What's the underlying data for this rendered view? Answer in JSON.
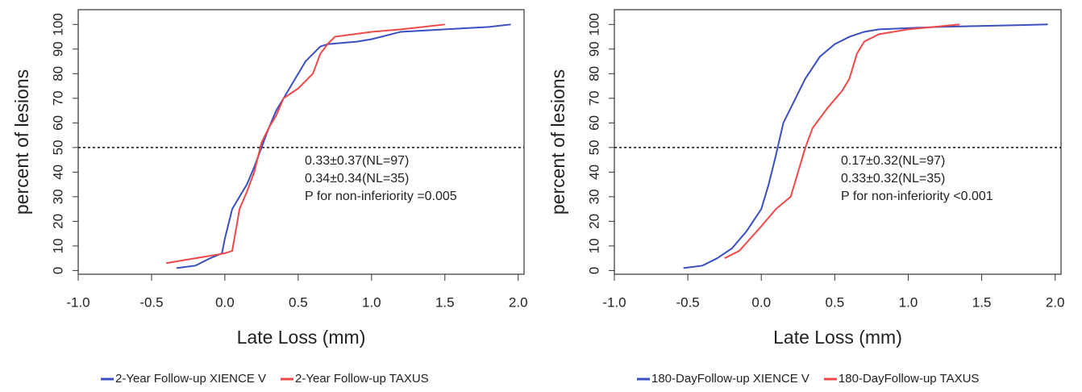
{
  "chart_data": [
    {
      "type": "line",
      "xlabel": "Late Loss (mm)",
      "ylabel": "percent of lesions",
      "xlim": [
        -1.0,
        2.04
      ],
      "ylim": [
        -1.5,
        106
      ],
      "xticks": [
        {
          "value": -1.0,
          "label": "-1.0"
        },
        {
          "value": -0.5,
          "label": "-0.5"
        },
        {
          "value": 0,
          "label": "0.0"
        },
        {
          "value": 0.5,
          "label": "0.5"
        },
        {
          "value": 1.0,
          "label": "1.0"
        },
        {
          "value": 1.5,
          "label": "1.5"
        },
        {
          "value": 2.0,
          "label": "2.0"
        }
      ],
      "yticks": [
        0,
        10,
        20,
        30,
        40,
        50,
        60,
        70,
        80,
        90,
        100
      ],
      "reference_line": 50,
      "annotations": [
        {
          "text": "0.33±0.37(NL=97)",
          "color": "#3a4fc0"
        },
        {
          "text": "0.34±0.34(NL=35)",
          "color": "#f04848"
        },
        {
          "text": "P for non-inferiority =0.005",
          "color": "#222222"
        }
      ],
      "series": [
        {
          "name": "2-Year Follow-up XIENCE V",
          "color": "#3a4fc0",
          "x": [
            -0.33,
            -0.2,
            -0.1,
            -0.02,
            0.0,
            0.05,
            0.1,
            0.15,
            0.2,
            0.25,
            0.3,
            0.35,
            0.4,
            0.45,
            0.5,
            0.55,
            0.6,
            0.65,
            0.7,
            0.9,
            1.0,
            1.2,
            1.5,
            1.8,
            1.95
          ],
          "values": [
            1,
            2,
            5,
            7,
            13,
            25,
            30,
            35,
            42,
            50,
            58,
            65,
            70,
            75,
            80,
            85,
            88,
            91,
            92,
            93,
            94,
            97,
            98,
            99,
            100
          ]
        },
        {
          "name": "2-Year Follow-up TAXUS",
          "color": "#f04848",
          "x": [
            -0.4,
            -0.2,
            0.0,
            0.05,
            0.1,
            0.15,
            0.2,
            0.25,
            0.3,
            0.35,
            0.4,
            0.45,
            0.5,
            0.6,
            0.65,
            0.7,
            0.75,
            1.0,
            1.2,
            1.5
          ],
          "values": [
            3,
            5,
            7,
            8,
            25,
            32,
            40,
            52,
            58,
            63,
            70,
            72,
            74,
            80,
            88,
            92,
            95,
            97,
            98,
            100
          ]
        }
      ]
    },
    {
      "type": "line",
      "xlabel": "Late Loss (mm)",
      "ylabel": "percent of lesions",
      "xlim": [
        -1.0,
        2.04
      ],
      "ylim": [
        -1.5,
        106
      ],
      "xticks": [
        {
          "value": -1.0,
          "label": "-1.0"
        },
        {
          "value": -0.5,
          "label": "-0.5"
        },
        {
          "value": 0,
          "label": "0.0"
        },
        {
          "value": 0.5,
          "label": "0.5"
        },
        {
          "value": 1.0,
          "label": "1.0"
        },
        {
          "value": 1.5,
          "label": "1.5"
        },
        {
          "value": 2.0,
          "label": "2.0"
        }
      ],
      "yticks": [
        0,
        10,
        20,
        30,
        40,
        50,
        60,
        70,
        80,
        90,
        100
      ],
      "reference_line": 50,
      "annotations": [
        {
          "text": "0.17±0.32(NL=97)",
          "color": "#3a4fc0"
        },
        {
          "text": "0.33±0.32(NL=35)",
          "color": "#f04848"
        },
        {
          "text": "P for non-inferiority <0.001",
          "color": "#222222"
        }
      ],
      "series": [
        {
          "name": "180-DayFollow-up XIENCE V",
          "color": "#3a4fc0",
          "x": [
            -0.53,
            -0.4,
            -0.3,
            -0.2,
            -0.1,
            0.0,
            0.05,
            0.1,
            0.15,
            0.2,
            0.25,
            0.3,
            0.4,
            0.5,
            0.6,
            0.7,
            0.8,
            1.2,
            1.95
          ],
          "values": [
            1,
            2,
            5,
            9,
            16,
            25,
            35,
            47,
            60,
            66,
            72,
            78,
            87,
            92,
            95,
            97,
            98,
            99,
            100
          ]
        },
        {
          "name": "180-DayFollow-up TAXUS",
          "color": "#f04848",
          "x": [
            -0.25,
            -0.15,
            0.0,
            0.1,
            0.2,
            0.25,
            0.3,
            0.35,
            0.45,
            0.55,
            0.6,
            0.65,
            0.7,
            0.8,
            1.0,
            1.35
          ],
          "values": [
            5,
            8,
            18,
            25,
            30,
            40,
            50,
            58,
            66,
            73,
            78,
            88,
            93,
            96,
            98,
            100
          ]
        }
      ]
    }
  ]
}
